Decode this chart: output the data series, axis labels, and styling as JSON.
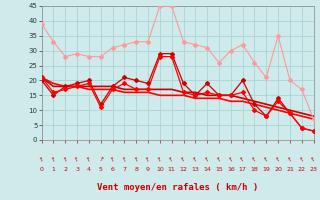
{
  "x": [
    0,
    1,
    2,
    3,
    4,
    5,
    6,
    7,
    8,
    9,
    10,
    11,
    12,
    13,
    14,
    15,
    16,
    17,
    18,
    19,
    20,
    21,
    22,
    23
  ],
  "lines": [
    {
      "y": [
        39,
        33,
        28,
        29,
        28,
        28,
        31,
        32,
        33,
        33,
        45,
        45,
        33,
        32,
        31,
        26,
        30,
        32,
        26,
        21,
        35,
        20,
        17,
        7
      ],
      "color": "#ff9999",
      "lw": 0.8,
      "marker": "D",
      "ms": 2.0
    },
    {
      "y": [
        20,
        15,
        18,
        19,
        20,
        12,
        18,
        21,
        20,
        19,
        29,
        29,
        19,
        15,
        19,
        15,
        15,
        20,
        12,
        8,
        14,
        9,
        4,
        3
      ],
      "color": "#cc0000",
      "lw": 0.9,
      "marker": "D",
      "ms": 2.0
    },
    {
      "y": [
        21,
        16,
        17,
        18,
        19,
        11,
        17,
        19,
        17,
        17,
        28,
        28,
        16,
        15,
        16,
        15,
        15,
        16,
        10,
        8,
        13,
        9,
        4,
        3
      ],
      "color": "#ff0000",
      "lw": 0.9,
      "marker": "D",
      "ms": 2.0
    },
    {
      "y": [
        21,
        18,
        18,
        18,
        18,
        18,
        18,
        17,
        17,
        17,
        17,
        17,
        16,
        16,
        15,
        15,
        15,
        14,
        13,
        12,
        11,
        10,
        9,
        8
      ],
      "color": "#cc0000",
      "lw": 1.2,
      "marker": null,
      "ms": 0
    },
    {
      "y": [
        21,
        19,
        18,
        18,
        17,
        17,
        17,
        16,
        16,
        16,
        15,
        15,
        15,
        14,
        14,
        14,
        13,
        13,
        12,
        11,
        10,
        9,
        8,
        7
      ],
      "color": "#ff0000",
      "lw": 1.2,
      "marker": null,
      "ms": 0
    }
  ],
  "arrow_rotations": [
    20,
    20,
    20,
    20,
    20,
    350,
    20,
    20,
    20,
    20,
    20,
    20,
    20,
    20,
    20,
    20,
    20,
    20,
    20,
    20,
    20,
    20,
    20,
    20
  ],
  "xlabel": "Vent moyen/en rafales ( km/h )",
  "xlim": [
    0,
    23
  ],
  "ylim": [
    0,
    45
  ],
  "yticks": [
    0,
    5,
    10,
    15,
    20,
    25,
    30,
    35,
    40,
    45
  ],
  "xticks": [
    0,
    1,
    2,
    3,
    4,
    5,
    6,
    7,
    8,
    9,
    10,
    11,
    12,
    13,
    14,
    15,
    16,
    17,
    18,
    19,
    20,
    21,
    22,
    23
  ],
  "bg_color": "#ceeaea",
  "grid_color": "#aad4d4",
  "tick_color": "#cc0000",
  "xlabel_color": "#cc0000"
}
